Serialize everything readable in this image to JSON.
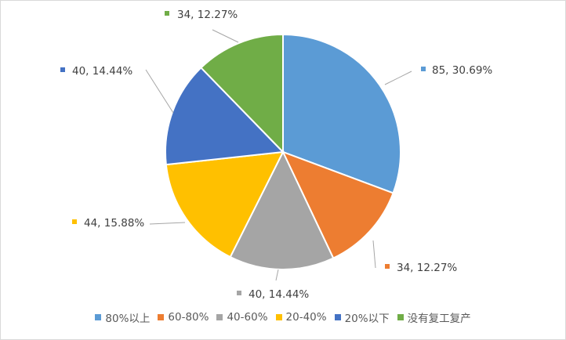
{
  "chart_data": {
    "type": "pie",
    "categories": [
      "80%以上",
      "60-80%",
      "40-60%",
      "20-40%",
      "20%以下",
      "没有复工复产"
    ],
    "values": [
      85,
      34,
      40,
      44,
      40,
      34
    ],
    "percent_labels": [
      "30.69%",
      "12.27%",
      "14.44%",
      "15.88%",
      "14.44%",
      "12.27%"
    ],
    "data_labels": [
      "85, 30.69%",
      "34, 12.27%",
      "40, 14.44%",
      "44, 15.88%",
      "40, 14.44%",
      "34, 12.27%"
    ],
    "colors": [
      "#5b9bd5",
      "#ed7d31",
      "#a5a5a5",
      "#ffc000",
      "#4472c4",
      "#70ad47"
    ],
    "legend_position": "bottom"
  }
}
